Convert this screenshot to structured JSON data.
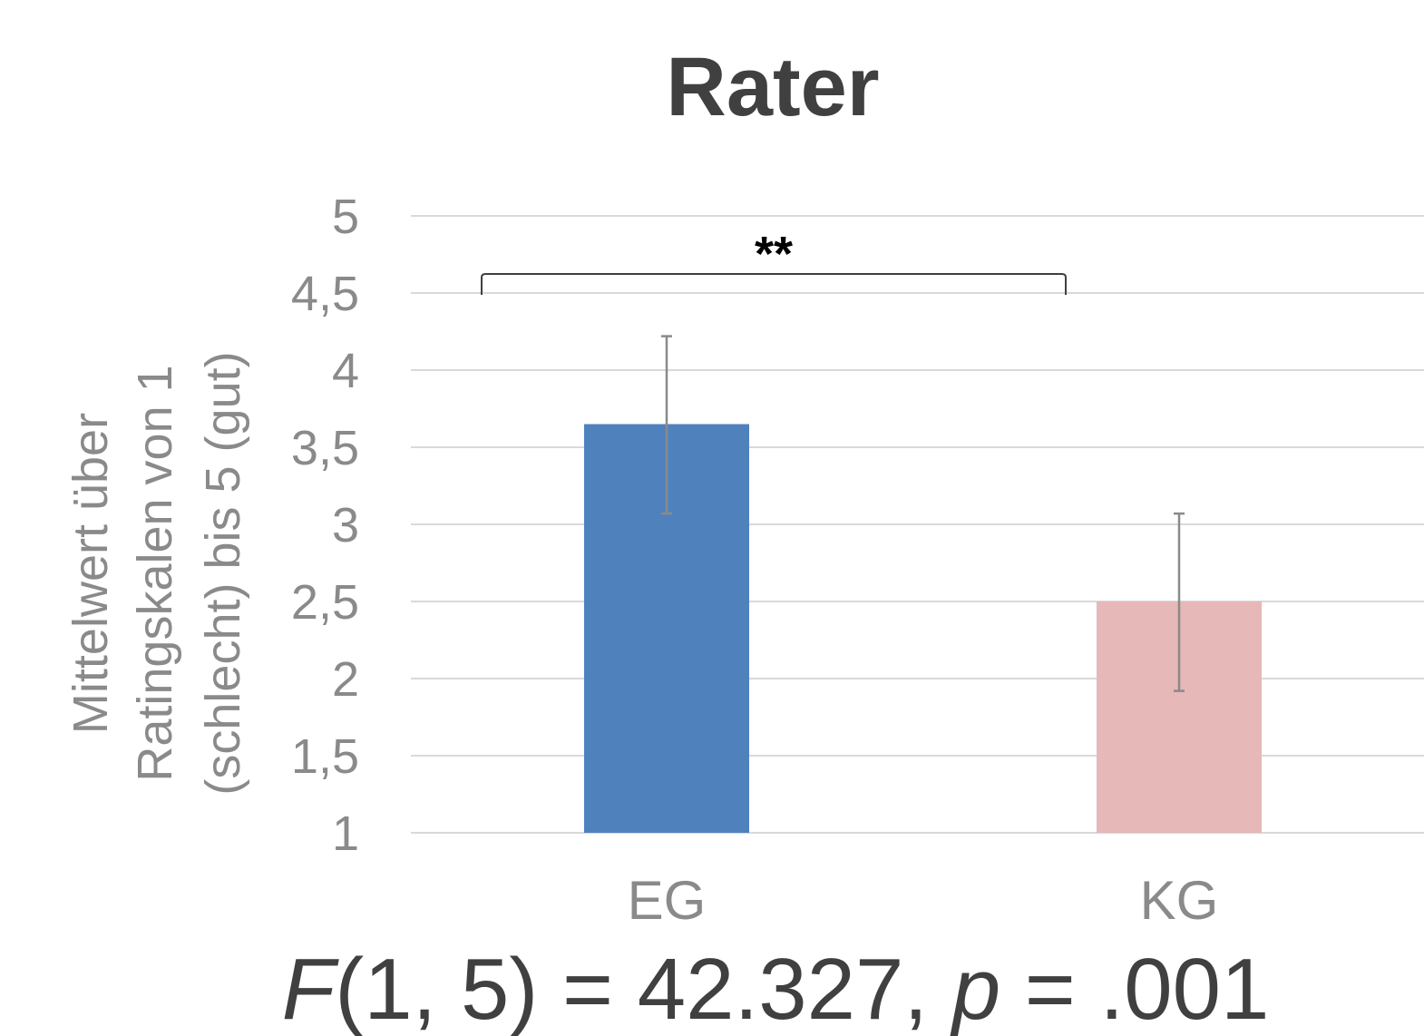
{
  "chart_data": {
    "type": "bar",
    "title": "Rater",
    "ylabel_lines": [
      "Mittelwert über",
      "Ratingskalen von 1",
      "(schlecht) bis 5 (gut)"
    ],
    "ylim": [
      1,
      5
    ],
    "yticks": [
      "1",
      "1,5",
      "2",
      "2,5",
      "3",
      "3,5",
      "4",
      "4,5",
      "5"
    ],
    "ytick_values": [
      1,
      1.5,
      2,
      2.5,
      3,
      3.5,
      4,
      4.5,
      5
    ],
    "grid": true,
    "categories": [
      "EG",
      "KG"
    ],
    "values": [
      3.65,
      2.5
    ],
    "error_low": [
      3.07,
      1.92
    ],
    "error_high": [
      4.22,
      3.07
    ],
    "colors": [
      "#4f81bd",
      "#e6b8b7"
    ],
    "significance": {
      "label": "**",
      "between": [
        "EG",
        "KG"
      ]
    },
    "annotation": {
      "F_symbol": "F",
      "df": "(1, 5) = 42.327, ",
      "p_symbol": "p",
      "p_value": " = .001"
    }
  }
}
